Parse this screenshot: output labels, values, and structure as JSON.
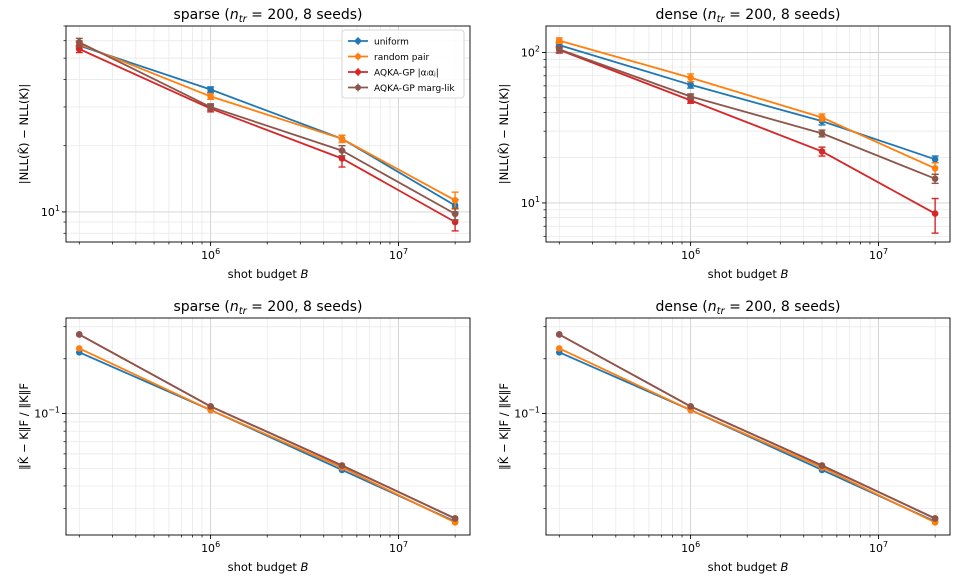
{
  "chart_data": [
    {
      "type": "line",
      "title": "sparse (n_tr = 200, 8 seeds)",
      "title_pre": "sparse (",
      "title_var": "n",
      "title_sub": "tr",
      "title_post": " = 200, 8 seeds)",
      "xlabel": "shot budget",
      "xlabel_var": "B",
      "ylabel": "|NLL(K̂) − NLL(K)|",
      "x_scale": "log",
      "y_scale": "log",
      "xlim": [
        170000,
        24000000
      ],
      "ylim": [
        7.3,
        70
      ],
      "x_ticks": [
        {
          "v": 1000000,
          "base": "10",
          "exp": "6"
        },
        {
          "v": 10000000,
          "base": "10",
          "exp": "7"
        }
      ],
      "y_ticks": [
        {
          "v": 10,
          "base": "10",
          "exp": "1"
        }
      ],
      "x": [
        200000,
        1000000,
        5000000,
        20000000
      ],
      "legend": {
        "placement": "upper right",
        "show": true
      },
      "series": [
        {
          "name": "uniform",
          "color": "#1f77b4",
          "values": [
            57.0,
            36.0,
            21.5,
            10.7
          ],
          "errors": [
            2.0,
            1.0,
            0.8,
            0.7
          ]
        },
        {
          "name": "random pair",
          "color": "#ff7f0e",
          "values": [
            58.0,
            33.5,
            21.5,
            11.3
          ],
          "errors": [
            2.0,
            1.0,
            0.8,
            1.0
          ]
        },
        {
          "name": "AQKA-GP |αᵢαⱼ|",
          "color": "#d62728",
          "values": [
            55.0,
            29.5,
            17.5,
            9.0
          ],
          "errors": [
            2.0,
            1.0,
            1.5,
            0.8
          ]
        },
        {
          "name": "AQKA-GP marg-lik",
          "color": "#8c564b",
          "values": [
            59.0,
            30.0,
            19.0,
            9.8
          ],
          "errors": [
            2.5,
            1.0,
            1.0,
            0.6
          ]
        }
      ]
    },
    {
      "type": "line",
      "title": "dense (n_tr = 200, 8 seeds)",
      "title_pre": "dense (",
      "title_var": "n",
      "title_sub": "tr",
      "title_post": " = 200, 8 seeds)",
      "xlabel": "shot budget",
      "xlabel_var": "B",
      "ylabel": "|NLL(K̂) − NLL(K)|",
      "x_scale": "log",
      "y_scale": "log",
      "xlim": [
        170000,
        24000000
      ],
      "ylim": [
        5.5,
        150
      ],
      "x_ticks": [
        {
          "v": 1000000,
          "base": "10",
          "exp": "6"
        },
        {
          "v": 10000000,
          "base": "10",
          "exp": "7"
        }
      ],
      "y_ticks": [
        {
          "v": 10,
          "base": "10",
          "exp": "1"
        },
        {
          "v": 100,
          "base": "10",
          "exp": "2"
        }
      ],
      "x": [
        200000,
        1000000,
        5000000,
        20000000
      ],
      "legend": {
        "show": false
      },
      "series": [
        {
          "name": "uniform",
          "color": "#1f77b4",
          "values": [
            112.0,
            61.0,
            35.0,
            19.5
          ],
          "errors": [
            5.0,
            3.0,
            2.0,
            1.0
          ]
        },
        {
          "name": "random pair",
          "color": "#ff7f0e",
          "values": [
            120.0,
            68.0,
            37.0,
            17.0
          ],
          "errors": [
            5.0,
            4.0,
            2.0,
            1.5
          ]
        },
        {
          "name": "AQKA-GP |αᵢαⱼ|",
          "color": "#d62728",
          "values": [
            104.0,
            48.0,
            22.0,
            8.5
          ],
          "errors": [
            5.0,
            2.0,
            1.5,
            2.2
          ]
        },
        {
          "name": "AQKA-GP marg-lik",
          "color": "#8c564b",
          "values": [
            105.0,
            51.0,
            29.0,
            14.5
          ],
          "errors": [
            5.0,
            2.0,
            1.5,
            1.0
          ]
        }
      ]
    },
    {
      "type": "line",
      "title": "sparse (n_tr = 200, 8 seeds)",
      "title_pre": "sparse (",
      "title_var": "n",
      "title_sub": "tr",
      "title_post": " = 200, 8 seeds)",
      "xlabel": "shot budget",
      "xlabel_var": "B",
      "ylabel": "‖K̂ − K‖F / ‖K‖F",
      "x_scale": "log",
      "y_scale": "log",
      "xlim": [
        170000,
        24000000
      ],
      "ylim": [
        0.0215,
        0.335
      ],
      "x_ticks": [
        {
          "v": 1000000,
          "base": "10",
          "exp": "6"
        },
        {
          "v": 10000000,
          "base": "10",
          "exp": "7"
        }
      ],
      "y_ticks": [
        {
          "v": 0.1,
          "base": "10",
          "exp": "−1"
        }
      ],
      "x": [
        200000,
        1000000,
        5000000,
        20000000
      ],
      "legend": {
        "show": false
      },
      "series": [
        {
          "name": "uniform",
          "color": "#1f77b4",
          "values": [
            0.217,
            0.1045,
            0.049,
            0.0255
          ],
          "errors": [
            0,
            0,
            0,
            0
          ]
        },
        {
          "name": "random pair",
          "color": "#ff7f0e",
          "values": [
            0.228,
            0.1045,
            0.0505,
            0.0252
          ],
          "errors": [
            0,
            0,
            0,
            0
          ]
        },
        {
          "name": "AQKA-GP |αᵢαⱼ|",
          "color": "#d62728",
          "values": [
            0.272,
            0.1095,
            0.0518,
            0.0265
          ],
          "errors": [
            0,
            0,
            0,
            0
          ]
        },
        {
          "name": "AQKA-GP marg-lik",
          "color": "#8c564b",
          "values": [
            0.272,
            0.1095,
            0.0518,
            0.0265
          ],
          "errors": [
            0,
            0,
            0,
            0
          ]
        }
      ]
    },
    {
      "type": "line",
      "title": "dense (n_tr = 200, 8 seeds)",
      "title_pre": "dense (",
      "title_var": "n",
      "title_sub": "tr",
      "title_post": " = 200, 8 seeds)",
      "xlabel": "shot budget",
      "xlabel_var": "B",
      "ylabel": "‖K̂ − K‖F / ‖K‖F",
      "x_scale": "log",
      "y_scale": "log",
      "xlim": [
        170000,
        24000000
      ],
      "ylim": [
        0.0215,
        0.335
      ],
      "x_ticks": [
        {
          "v": 1000000,
          "base": "10",
          "exp": "6"
        },
        {
          "v": 10000000,
          "base": "10",
          "exp": "7"
        }
      ],
      "y_ticks": [
        {
          "v": 0.1,
          "base": "10",
          "exp": "−1"
        }
      ],
      "x": [
        200000,
        1000000,
        5000000,
        20000000
      ],
      "legend": {
        "show": false
      },
      "series": [
        {
          "name": "uniform",
          "color": "#1f77b4",
          "values": [
            0.217,
            0.1045,
            0.049,
            0.0255
          ],
          "errors": [
            0,
            0,
            0,
            0
          ]
        },
        {
          "name": "random pair",
          "color": "#ff7f0e",
          "values": [
            0.228,
            0.1045,
            0.0505,
            0.0252
          ],
          "errors": [
            0,
            0,
            0,
            0
          ]
        },
        {
          "name": "AQKA-GP |αᵢαⱼ|",
          "color": "#d62728",
          "values": [
            0.272,
            0.1095,
            0.0518,
            0.0265
          ],
          "errors": [
            0,
            0,
            0,
            0
          ]
        },
        {
          "name": "AQKA-GP marg-lik",
          "color": "#8c564b",
          "values": [
            0.272,
            0.1095,
            0.0518,
            0.0265
          ],
          "errors": [
            0,
            0,
            0,
            0
          ]
        }
      ]
    }
  ]
}
